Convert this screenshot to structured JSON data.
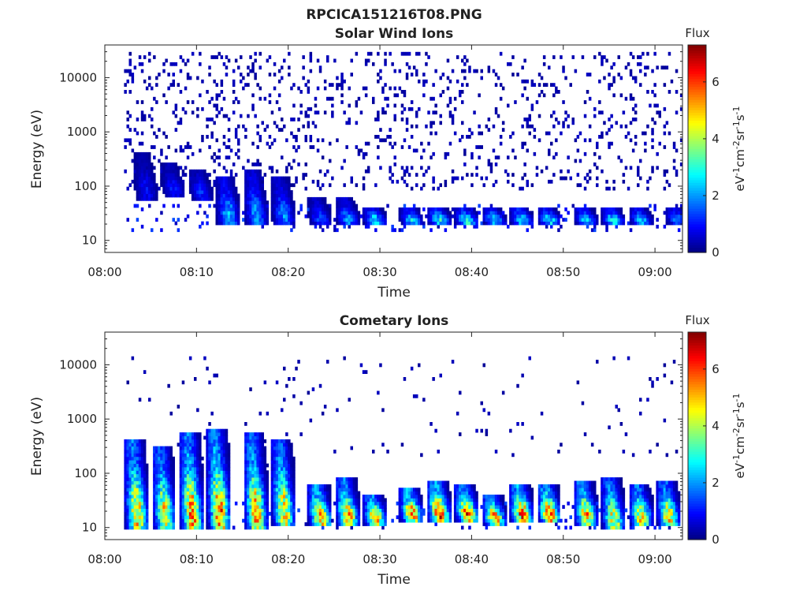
{
  "figure": {
    "title": "RPCICA151216T08.PNG"
  },
  "chart_data": [
    {
      "type": "heatmap",
      "title": "Solar Wind Ions",
      "xlabel": "Time",
      "ylabel": "Energy (eV)",
      "y_scale": "log",
      "ylim": [
        6,
        40000
      ],
      "xlim": [
        "08:00",
        "09:03"
      ],
      "x_ticks": [
        "08:00",
        "08:10",
        "08:20",
        "08:30",
        "08:40",
        "08:50",
        "09:00"
      ],
      "y_ticks": [
        "10",
        "100",
        "1000",
        "10000"
      ],
      "colorbar": {
        "label": "Flux",
        "unit": "eV-1cm-2sr-1s-1",
        "range": [
          0,
          7.3
        ],
        "ticks": [
          "0",
          "2",
          "4",
          "6"
        ],
        "colormap": "jet"
      },
      "seed": 17,
      "scatter_band_energy_ev": [
        80,
        30000
      ],
      "scatter_density": 0.12,
      "low_energy_band_ev": [
        15,
        45
      ],
      "features": [
        {
          "time": "08:04",
          "energy_ev": [
            60,
            400
          ],
          "peak": 1.0
        },
        {
          "time": "08:07",
          "energy_ev": [
            70,
            250
          ],
          "peak": 1.2
        },
        {
          "time": "08:10",
          "energy_ev": [
            60,
            200
          ],
          "peak": 1.3
        },
        {
          "time": "08:13",
          "energy_ev": [
            20,
            150
          ],
          "peak": 2.5
        },
        {
          "time": "08:16",
          "energy_ev": [
            20,
            200
          ],
          "peak": 2.2
        },
        {
          "time": "08:19",
          "energy_ev": [
            20,
            150
          ],
          "peak": 2.0
        },
        {
          "time": "08:23",
          "energy_ev": [
            20,
            60
          ],
          "peak": 1.6
        },
        {
          "time": "08:26",
          "energy_ev": [
            20,
            60
          ],
          "peak": 2.2
        },
        {
          "time": "08:29",
          "energy_ev": [
            20,
            40
          ],
          "peak": 3.0
        },
        {
          "time": "08:33",
          "energy_ev": [
            20,
            40
          ],
          "peak": 2.8
        },
        {
          "time": "08:36",
          "energy_ev": [
            20,
            40
          ],
          "peak": 3.4
        },
        {
          "time": "08:39",
          "energy_ev": [
            20,
            40
          ],
          "peak": 3.4
        },
        {
          "time": "08:42",
          "energy_ev": [
            20,
            40
          ],
          "peak": 3.0
        },
        {
          "time": "08:45",
          "energy_ev": [
            20,
            40
          ],
          "peak": 3.2
        },
        {
          "time": "08:48",
          "energy_ev": [
            20,
            40
          ],
          "peak": 3.0
        },
        {
          "time": "08:52",
          "energy_ev": [
            20,
            40
          ],
          "peak": 2.9
        },
        {
          "time": "08:55",
          "energy_ev": [
            20,
            40
          ],
          "peak": 3.0
        },
        {
          "time": "08:58",
          "energy_ev": [
            20,
            40
          ],
          "peak": 2.5
        },
        {
          "time": "09:02",
          "energy_ev": [
            20,
            40
          ],
          "peak": 2.2
        }
      ]
    },
    {
      "type": "heatmap",
      "title": "Cometary Ions",
      "xlabel": "Time",
      "ylabel": "Energy (eV)",
      "y_scale": "log",
      "ylim": [
        6,
        40000
      ],
      "xlim": [
        "08:00",
        "09:03"
      ],
      "x_ticks": [
        "08:00",
        "08:10",
        "08:20",
        "08:30",
        "08:40",
        "08:50",
        "09:00"
      ],
      "y_ticks": [
        "10",
        "100",
        "1000",
        "10000"
      ],
      "colorbar": {
        "label": "Flux",
        "unit": "eV-1cm-2sr-1s-1",
        "range": [
          0,
          7.3
        ],
        "ticks": [
          "0",
          "2",
          "4",
          "6"
        ],
        "colormap": "jet"
      },
      "seed": 91,
      "scatter_band_energy_ev": [
        200,
        15000
      ],
      "scatter_density": 0.02,
      "low_energy_band_ev": [
        10,
        30
      ],
      "features": [
        {
          "time": "08:03",
          "energy_ev": [
            10,
            400
          ],
          "peak": 5.5
        },
        {
          "time": "08:06",
          "energy_ev": [
            10,
            300
          ],
          "peak": 5.0
        },
        {
          "time": "08:09",
          "energy_ev": [
            10,
            500
          ],
          "peak": 5.8
        },
        {
          "time": "08:12",
          "energy_ev": [
            10,
            600
          ],
          "peak": 6.0
        },
        {
          "time": "08:16",
          "energy_ev": [
            10,
            500
          ],
          "peak": 5.6
        },
        {
          "time": "08:19",
          "energy_ev": [
            12,
            400
          ],
          "peak": 5.2
        },
        {
          "time": "08:23",
          "energy_ev": [
            12,
            60
          ],
          "peak": 6.2
        },
        {
          "time": "08:26",
          "energy_ev": [
            12,
            80
          ],
          "peak": 5.6
        },
        {
          "time": "08:29",
          "energy_ev": [
            12,
            40
          ],
          "peak": 6.0
        },
        {
          "time": "08:33",
          "energy_ev": [
            14,
            50
          ],
          "peak": 6.2
        },
        {
          "time": "08:36",
          "energy_ev": [
            14,
            70
          ],
          "peak": 6.6
        },
        {
          "time": "08:39",
          "energy_ev": [
            14,
            60
          ],
          "peak": 6.3
        },
        {
          "time": "08:42",
          "energy_ev": [
            12,
            40
          ],
          "peak": 5.8
        },
        {
          "time": "08:45",
          "energy_ev": [
            14,
            60
          ],
          "peak": 6.4
        },
        {
          "time": "08:48",
          "energy_ev": [
            14,
            60
          ],
          "peak": 6.5
        },
        {
          "time": "08:52",
          "energy_ev": [
            12,
            70
          ],
          "peak": 5.8
        },
        {
          "time": "08:55",
          "energy_ev": [
            10,
            80
          ],
          "peak": 5.0
        },
        {
          "time": "08:58",
          "energy_ev": [
            12,
            60
          ],
          "peak": 5.4
        },
        {
          "time": "09:01",
          "energy_ev": [
            12,
            70
          ],
          "peak": 5.2
        }
      ]
    }
  ]
}
